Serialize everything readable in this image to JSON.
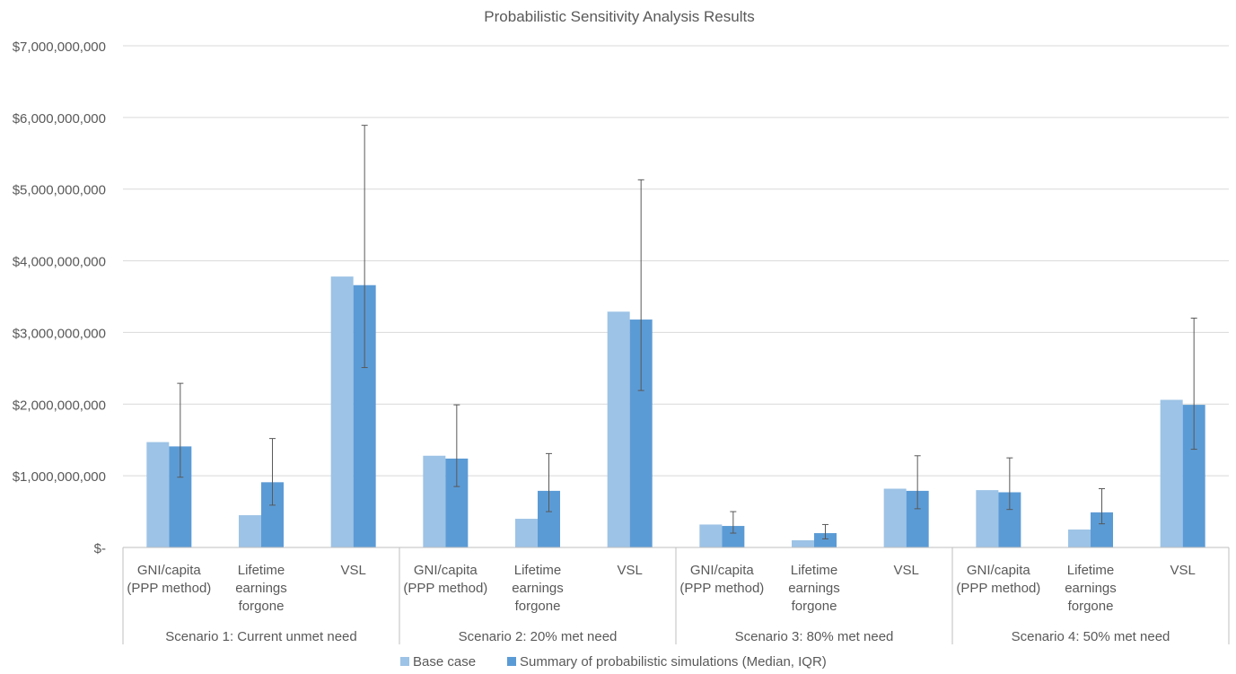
{
  "chart_data": {
    "type": "bar",
    "title": "Probabilistic Sensitivity Analysis Results",
    "xlabel": "",
    "ylabel": "",
    "ylim": [
      0,
      7000000000
    ],
    "y_ticks": [
      {
        "value": 0,
        "label": "$-"
      },
      {
        "value": 1000000000,
        "label": "$1,000,000,000"
      },
      {
        "value": 2000000000,
        "label": "$2,000,000,000"
      },
      {
        "value": 3000000000,
        "label": "$3,000,000,000"
      },
      {
        "value": 4000000000,
        "label": "$4,000,000,000"
      },
      {
        "value": 5000000000,
        "label": "$5,000,000,000"
      },
      {
        "value": 6000000000,
        "label": "$6,000,000,000"
      },
      {
        "value": 7000000000,
        "label": "$7,000,000,000"
      }
    ],
    "grid": true,
    "legend_position": "bottom",
    "groups": [
      {
        "label": "Scenario 1: Current unmet need",
        "categories": [
          [
            "GNI/capita",
            "(PPP method)"
          ],
          [
            "Lifetime",
            "earnings",
            "forgone"
          ],
          [
            "VSL"
          ]
        ]
      },
      {
        "label": "Scenario 2: 20% met need",
        "categories": [
          [
            "GNI/capita",
            "(PPP method)"
          ],
          [
            "Lifetime",
            "earnings",
            "forgone"
          ],
          [
            "VSL"
          ]
        ]
      },
      {
        "label": "Scenario 3: 80% met need",
        "categories": [
          [
            "GNI/capita",
            "(PPP method)"
          ],
          [
            "Lifetime",
            "earnings",
            "forgone"
          ],
          [
            "VSL"
          ]
        ]
      },
      {
        "label": "Scenario 4: 50% met need",
        "categories": [
          [
            "GNI/capita",
            "(PPP method)"
          ],
          [
            "Lifetime",
            "earnings",
            "forgone"
          ],
          [
            "VSL"
          ]
        ]
      }
    ],
    "series": [
      {
        "name": "Base case",
        "color": "#9DC3E6",
        "values": [
          1470000000,
          450000000,
          3780000000,
          1280000000,
          400000000,
          3290000000,
          320000000,
          100000000,
          820000000,
          800000000,
          250000000,
          2060000000
        ]
      },
      {
        "name": "Summary of probabilistic simulations (Median, IQR)",
        "color": "#5B9BD5",
        "values": [
          1410000000,
          910000000,
          3660000000,
          1240000000,
          790000000,
          3180000000,
          300000000,
          200000000,
          790000000,
          770000000,
          490000000,
          1990000000
        ],
        "iqr_low": [
          980000000,
          590000000,
          2510000000,
          850000000,
          500000000,
          2190000000,
          200000000,
          120000000,
          540000000,
          530000000,
          330000000,
          1370000000
        ],
        "iqr_high": [
          2290000000,
          1520000000,
          5890000000,
          1990000000,
          1310000000,
          5130000000,
          500000000,
          320000000,
          1280000000,
          1250000000,
          820000000,
          3200000000
        ]
      }
    ]
  }
}
